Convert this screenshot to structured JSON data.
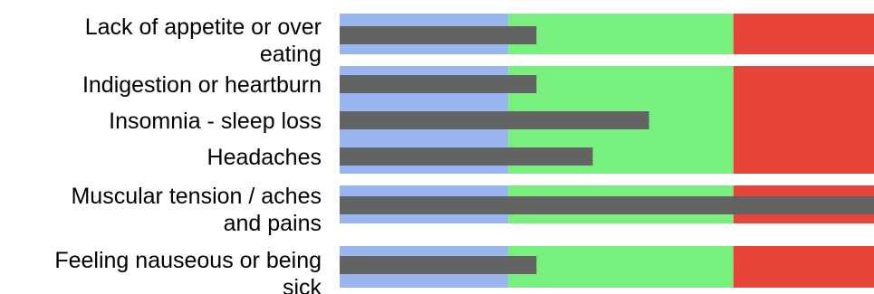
{
  "chart_data": {
    "type": "bar",
    "orientation": "horizontal",
    "title": "",
    "xlabel": "",
    "ylabel": "",
    "grid": false,
    "legend": "none",
    "xlim": [
      0,
      19
    ],
    "bands": [
      {
        "from": 0,
        "to": 6,
        "color": "#9bb5f0"
      },
      {
        "from": 6,
        "to": 14,
        "color": "#78f07e"
      },
      {
        "from": 14,
        "to": 19,
        "color": "#e8453a"
      }
    ],
    "bar_color": "#636363",
    "categories": [
      {
        "lines": [
          "Lack of appetite or over",
          "eating"
        ]
      },
      {
        "lines": [
          "Indigestion or heartburn"
        ]
      },
      {
        "lines": [
          "Insomnia - sleep loss"
        ]
      },
      {
        "lines": [
          "Headaches"
        ]
      },
      {
        "lines": [
          "Muscular tension / aches",
          "and pains"
        ]
      },
      {
        "lines": [
          "Feeling nauseous or being",
          "sick"
        ]
      }
    ],
    "values": [
      7,
      7,
      11,
      9,
      19,
      7
    ]
  }
}
